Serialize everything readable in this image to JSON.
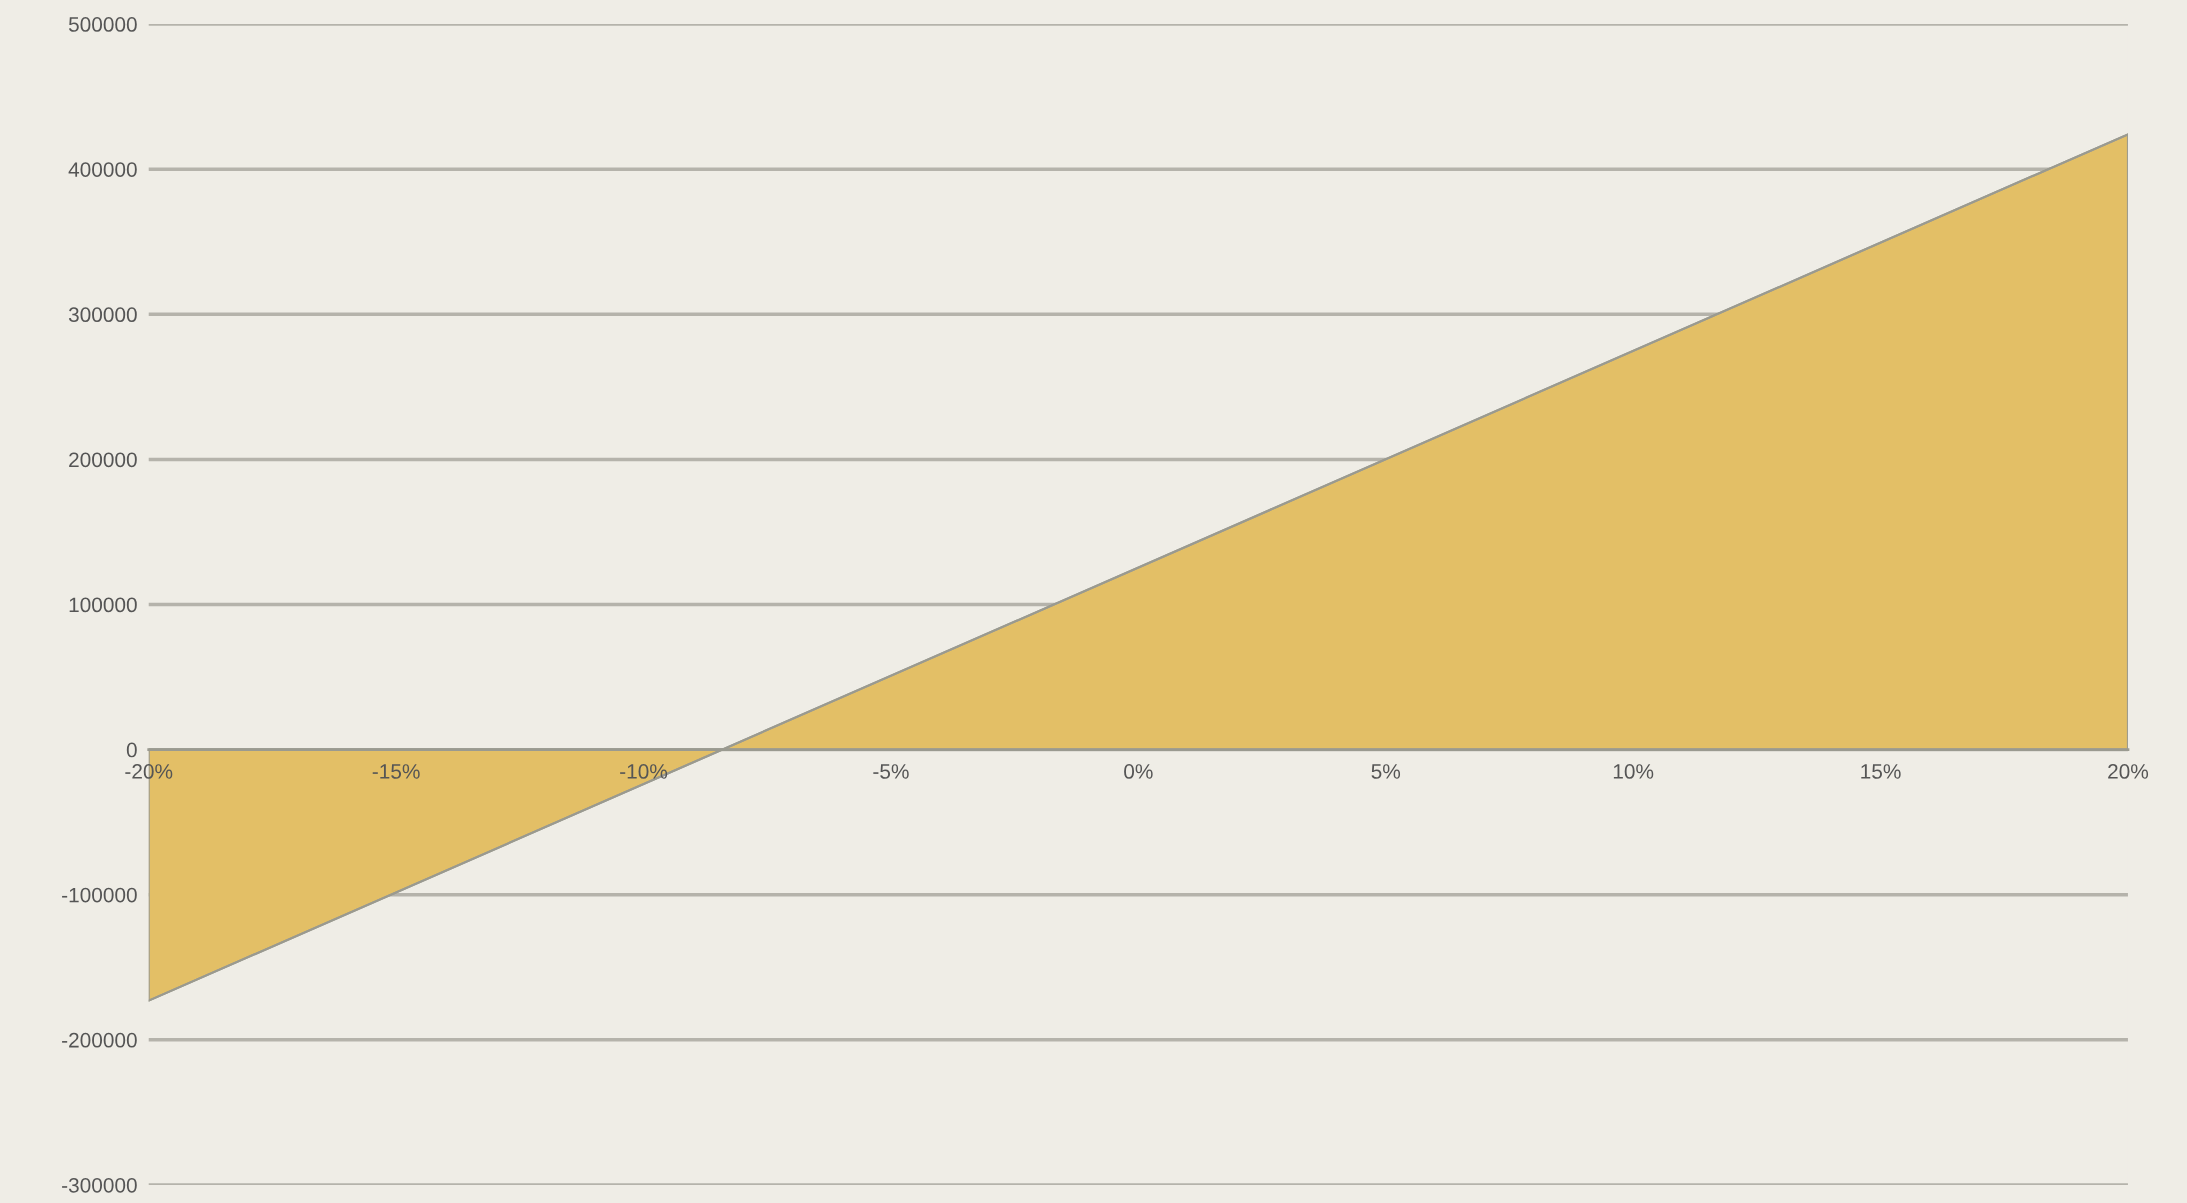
{
  "chart_data": {
    "type": "area",
    "x": [
      -20,
      20
    ],
    "series": [
      {
        "color": "#e3bf66",
        "values": [
          -173000,
          424000
        ]
      }
    ],
    "xlim": [
      -20,
      20
    ],
    "xticks": [
      {
        "value": -20,
        "label": "-20%"
      },
      {
        "value": -15,
        "label": "-15%"
      },
      {
        "value": -10,
        "label": "-10%"
      },
      {
        "value": -5,
        "label": "-5%"
      },
      {
        "value": 0,
        "label": "0%"
      },
      {
        "value": 5,
        "label": "5%"
      },
      {
        "value": 10,
        "label": "10%"
      },
      {
        "value": 15,
        "label": "15%"
      },
      {
        "value": 20,
        "label": "20%"
      }
    ],
    "ylim": [
      -300000,
      500000
    ],
    "yticks": [
      -300000,
      -200000,
      -100000,
      0,
      100000,
      200000,
      300000,
      400000,
      500000
    ],
    "grid": "y",
    "legend": false
  }
}
